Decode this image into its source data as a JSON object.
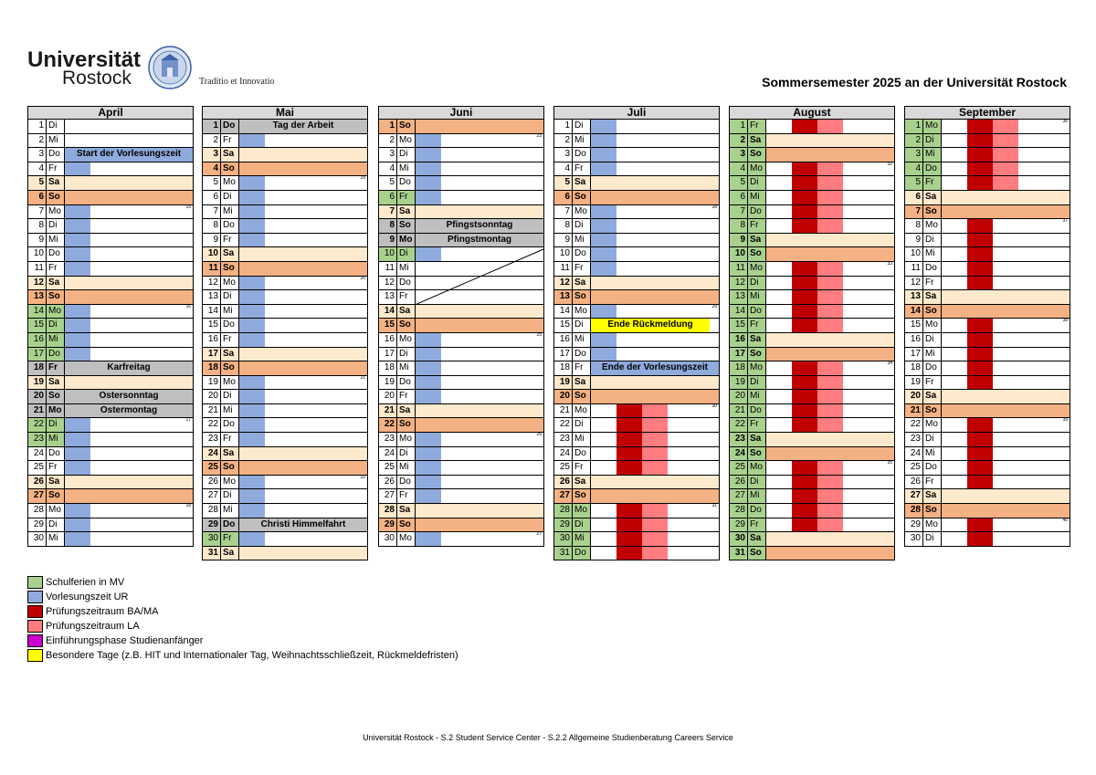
{
  "header": {
    "uni_line1": "Universität",
    "uni_line2": "Rostock",
    "motto": "Traditio et Innovatio",
    "title": "Sommersemester 2025 an der Universität Rostock"
  },
  "colors": {
    "schulferien": "#a9d18e",
    "vorlesungszeit": "#8faadc",
    "pruefung_bama": "#c00000",
    "pruefung_la": "#ff7c80",
    "einfuehrung": "#cc00cc",
    "besondere": "#ffff00",
    "saturday": "#fde9cc",
    "sunday": "#f4b183",
    "holiday": "#bfbfbf"
  },
  "months": [
    {
      "name": "April",
      "days": [
        {
          "d": "1",
          "w": "Di"
        },
        {
          "d": "2",
          "w": "Mi"
        },
        {
          "d": "3",
          "w": "Do",
          "label": "Start der Vorlesungszeit",
          "lt": "blue"
        },
        {
          "d": "4",
          "w": "Fr"
        },
        {
          "d": "5",
          "w": "Sa"
        },
        {
          "d": "6",
          "w": "So"
        },
        {
          "d": "7",
          "w": "Mo",
          "wk": "15"
        },
        {
          "d": "8",
          "w": "Di"
        },
        {
          "d": "9",
          "w": "Mi"
        },
        {
          "d": "10",
          "w": "Do"
        },
        {
          "d": "11",
          "w": "Fr"
        },
        {
          "d": "12",
          "w": "Sa"
        },
        {
          "d": "13",
          "w": "So"
        },
        {
          "d": "14",
          "w": "Mo",
          "wk": "16"
        },
        {
          "d": "15",
          "w": "Di"
        },
        {
          "d": "16",
          "w": "Mi"
        },
        {
          "d": "17",
          "w": "Do"
        },
        {
          "d": "18",
          "w": "Fr",
          "label": "Karfreitag",
          "lt": "hol"
        },
        {
          "d": "19",
          "w": "Sa"
        },
        {
          "d": "20",
          "w": "So",
          "label": "Ostersonntag",
          "lt": "hol"
        },
        {
          "d": "21",
          "w": "Mo",
          "label": "Ostermontag",
          "lt": "hol"
        },
        {
          "d": "22",
          "w": "Di",
          "wk": "17"
        },
        {
          "d": "23",
          "w": "Mi"
        },
        {
          "d": "24",
          "w": "Do"
        },
        {
          "d": "25",
          "w": "Fr"
        },
        {
          "d": "26",
          "w": "Sa"
        },
        {
          "d": "27",
          "w": "So"
        },
        {
          "d": "28",
          "w": "Mo",
          "wk": "18"
        },
        {
          "d": "29",
          "w": "Di"
        },
        {
          "d": "30",
          "w": "Mi"
        }
      ]
    },
    {
      "name": "Mai",
      "days": [
        {
          "d": "1",
          "w": "Do",
          "label": "Tag der Arbeit",
          "lt": "hol"
        },
        {
          "d": "2",
          "w": "Fr"
        },
        {
          "d": "3",
          "w": "Sa"
        },
        {
          "d": "4",
          "w": "So"
        },
        {
          "d": "5",
          "w": "Mo",
          "wk": "19"
        },
        {
          "d": "6",
          "w": "Di"
        },
        {
          "d": "7",
          "w": "Mi"
        },
        {
          "d": "8",
          "w": "Do"
        },
        {
          "d": "9",
          "w": "Fr"
        },
        {
          "d": "10",
          "w": "Sa"
        },
        {
          "d": "11",
          "w": "So"
        },
        {
          "d": "12",
          "w": "Mo",
          "wk": "20"
        },
        {
          "d": "13",
          "w": "Di"
        },
        {
          "d": "14",
          "w": "Mi"
        },
        {
          "d": "15",
          "w": "Do"
        },
        {
          "d": "16",
          "w": "Fr"
        },
        {
          "d": "17",
          "w": "Sa"
        },
        {
          "d": "18",
          "w": "So"
        },
        {
          "d": "19",
          "w": "Mo",
          "wk": "21"
        },
        {
          "d": "20",
          "w": "Di"
        },
        {
          "d": "21",
          "w": "Mi"
        },
        {
          "d": "22",
          "w": "Do"
        },
        {
          "d": "23",
          "w": "Fr"
        },
        {
          "d": "24",
          "w": "Sa"
        },
        {
          "d": "25",
          "w": "So"
        },
        {
          "d": "26",
          "w": "Mo",
          "wk": "22"
        },
        {
          "d": "27",
          "w": "Di"
        },
        {
          "d": "28",
          "w": "Mi"
        },
        {
          "d": "29",
          "w": "Do",
          "label": "Christi Himmelfahrt",
          "lt": "hol"
        },
        {
          "d": "30",
          "w": "Fr"
        },
        {
          "d": "31",
          "w": "Sa"
        }
      ]
    },
    {
      "name": "Juni",
      "days": [
        {
          "d": "1",
          "w": "So"
        },
        {
          "d": "2",
          "w": "Mo",
          "wk": "23"
        },
        {
          "d": "3",
          "w": "Di"
        },
        {
          "d": "4",
          "w": "Mi"
        },
        {
          "d": "5",
          "w": "Do"
        },
        {
          "d": "6",
          "w": "Fr"
        },
        {
          "d": "7",
          "w": "Sa"
        },
        {
          "d": "8",
          "w": "So",
          "label": "Pfingstsonntag",
          "lt": "hol"
        },
        {
          "d": "9",
          "w": "Mo",
          "label": "Pfingstmontag",
          "lt": "hol"
        },
        {
          "d": "10",
          "w": "Di"
        },
        {
          "d": "11",
          "w": "Mi"
        },
        {
          "d": "12",
          "w": "Do"
        },
        {
          "d": "13",
          "w": "Fr"
        },
        {
          "d": "14",
          "w": "Sa"
        },
        {
          "d": "15",
          "w": "So"
        },
        {
          "d": "16",
          "w": "Mo",
          "wk": "25"
        },
        {
          "d": "17",
          "w": "Di"
        },
        {
          "d": "18",
          "w": "Mi"
        },
        {
          "d": "19",
          "w": "Do"
        },
        {
          "d": "20",
          "w": "Fr"
        },
        {
          "d": "21",
          "w": "Sa"
        },
        {
          "d": "22",
          "w": "So"
        },
        {
          "d": "23",
          "w": "Mo",
          "wk": "26"
        },
        {
          "d": "24",
          "w": "Di"
        },
        {
          "d": "25",
          "w": "Mi"
        },
        {
          "d": "26",
          "w": "Do"
        },
        {
          "d": "27",
          "w": "Fr"
        },
        {
          "d": "28",
          "w": "Sa"
        },
        {
          "d": "29",
          "w": "So"
        },
        {
          "d": "30",
          "w": "Mo",
          "wk": "27"
        }
      ]
    },
    {
      "name": "Juli",
      "days": [
        {
          "d": "1",
          "w": "Di"
        },
        {
          "d": "2",
          "w": "Mi"
        },
        {
          "d": "3",
          "w": "Do"
        },
        {
          "d": "4",
          "w": "Fr"
        },
        {
          "d": "5",
          "w": "Sa"
        },
        {
          "d": "6",
          "w": "So"
        },
        {
          "d": "7",
          "w": "Mo",
          "wk": "28"
        },
        {
          "d": "8",
          "w": "Di"
        },
        {
          "d": "9",
          "w": "Mi"
        },
        {
          "d": "10",
          "w": "Do"
        },
        {
          "d": "11",
          "w": "Fr"
        },
        {
          "d": "12",
          "w": "Sa"
        },
        {
          "d": "13",
          "w": "So"
        },
        {
          "d": "14",
          "w": "Mo",
          "wk": "29"
        },
        {
          "d": "15",
          "w": "Di",
          "label": "Ende Rückmeldung",
          "lt": "yellow"
        },
        {
          "d": "16",
          "w": "Mi"
        },
        {
          "d": "17",
          "w": "Do"
        },
        {
          "d": "18",
          "w": "Fr",
          "label": "Ende der Vorlesungszeit",
          "lt": "blue"
        },
        {
          "d": "19",
          "w": "Sa"
        },
        {
          "d": "20",
          "w": "So"
        },
        {
          "d": "21",
          "w": "Mo",
          "wk": "30"
        },
        {
          "d": "22",
          "w": "Di"
        },
        {
          "d": "23",
          "w": "Mi"
        },
        {
          "d": "24",
          "w": "Do"
        },
        {
          "d": "25",
          "w": "Fr"
        },
        {
          "d": "26",
          "w": "Sa"
        },
        {
          "d": "27",
          "w": "So"
        },
        {
          "d": "28",
          "w": "Mo",
          "wk": "31"
        },
        {
          "d": "29",
          "w": "Di"
        },
        {
          "d": "30",
          "w": "Mi"
        },
        {
          "d": "31",
          "w": "Do"
        }
      ]
    },
    {
      "name": "August",
      "days": [
        {
          "d": "1",
          "w": "Fr"
        },
        {
          "d": "2",
          "w": "Sa"
        },
        {
          "d": "3",
          "w": "So"
        },
        {
          "d": "4",
          "w": "Mo",
          "wk": "32"
        },
        {
          "d": "5",
          "w": "Di"
        },
        {
          "d": "6",
          "w": "Mi"
        },
        {
          "d": "7",
          "w": "Do"
        },
        {
          "d": "8",
          "w": "Fr"
        },
        {
          "d": "9",
          "w": "Sa"
        },
        {
          "d": "10",
          "w": "So"
        },
        {
          "d": "11",
          "w": "Mo",
          "wk": "33"
        },
        {
          "d": "12",
          "w": "Di"
        },
        {
          "d": "13",
          "w": "Mi"
        },
        {
          "d": "14",
          "w": "Do"
        },
        {
          "d": "15",
          "w": "Fr"
        },
        {
          "d": "16",
          "w": "Sa"
        },
        {
          "d": "17",
          "w": "So"
        },
        {
          "d": "18",
          "w": "Mo",
          "wk": "34"
        },
        {
          "d": "19",
          "w": "Di"
        },
        {
          "d": "20",
          "w": "Mi"
        },
        {
          "d": "21",
          "w": "Do"
        },
        {
          "d": "22",
          "w": "Fr"
        },
        {
          "d": "23",
          "w": "Sa"
        },
        {
          "d": "24",
          "w": "So"
        },
        {
          "d": "25",
          "w": "Mo",
          "wk": "35"
        },
        {
          "d": "26",
          "w": "Di"
        },
        {
          "d": "27",
          "w": "Mi"
        },
        {
          "d": "28",
          "w": "Do"
        },
        {
          "d": "29",
          "w": "Fr"
        },
        {
          "d": "30",
          "w": "Sa"
        },
        {
          "d": "31",
          "w": "So"
        }
      ]
    },
    {
      "name": "September",
      "days": [
        {
          "d": "1",
          "w": "Mo",
          "wk": "36"
        },
        {
          "d": "2",
          "w": "Di"
        },
        {
          "d": "3",
          "w": "Mi"
        },
        {
          "d": "4",
          "w": "Do"
        },
        {
          "d": "5",
          "w": "Fr"
        },
        {
          "d": "6",
          "w": "Sa"
        },
        {
          "d": "7",
          "w": "So"
        },
        {
          "d": "8",
          "w": "Mo",
          "wk": "37"
        },
        {
          "d": "9",
          "w": "Di"
        },
        {
          "d": "10",
          "w": "Mi"
        },
        {
          "d": "11",
          "w": "Do"
        },
        {
          "d": "12",
          "w": "Fr"
        },
        {
          "d": "13",
          "w": "Sa"
        },
        {
          "d": "14",
          "w": "So"
        },
        {
          "d": "15",
          "w": "Mo",
          "wk": "38"
        },
        {
          "d": "16",
          "w": "Di"
        },
        {
          "d": "17",
          "w": "Mi"
        },
        {
          "d": "18",
          "w": "Do"
        },
        {
          "d": "19",
          "w": "Fr"
        },
        {
          "d": "20",
          "w": "Sa"
        },
        {
          "d": "21",
          "w": "So"
        },
        {
          "d": "22",
          "w": "Mo",
          "wk": "39"
        },
        {
          "d": "23",
          "w": "Di"
        },
        {
          "d": "24",
          "w": "Mi"
        },
        {
          "d": "25",
          "w": "Do"
        },
        {
          "d": "26",
          "w": "Fr"
        },
        {
          "d": "27",
          "w": "Sa"
        },
        {
          "d": "28",
          "w": "So"
        },
        {
          "d": "29",
          "w": "Mo",
          "wk": "40"
        },
        {
          "d": "30",
          "w": "Di"
        }
      ]
    }
  ],
  "legend": [
    {
      "color": "#a9d18e",
      "label": "Schulferien in MV"
    },
    {
      "color": "#8faadc",
      "label": "Vorlesungszeit UR"
    },
    {
      "color": "#c00000",
      "label": "Prüfungszeitraum  BA/MA"
    },
    {
      "color": "#ff7c80",
      "label": "Prüfungszeitraum LA"
    },
    {
      "color": "#cc00cc",
      "label": "Einführungsphase Studienanfänger"
    },
    {
      "color": "#ffff00",
      "label": "Besondere Tage (z.B. HIT und Internationaler Tag, Weihnachtsschließzeit, Rückmeldefristen)"
    }
  ],
  "footer": "Universität Rostock - S.2 Student Service Center - S.2.2 Allgemeine Studienberatung Careers Service"
}
